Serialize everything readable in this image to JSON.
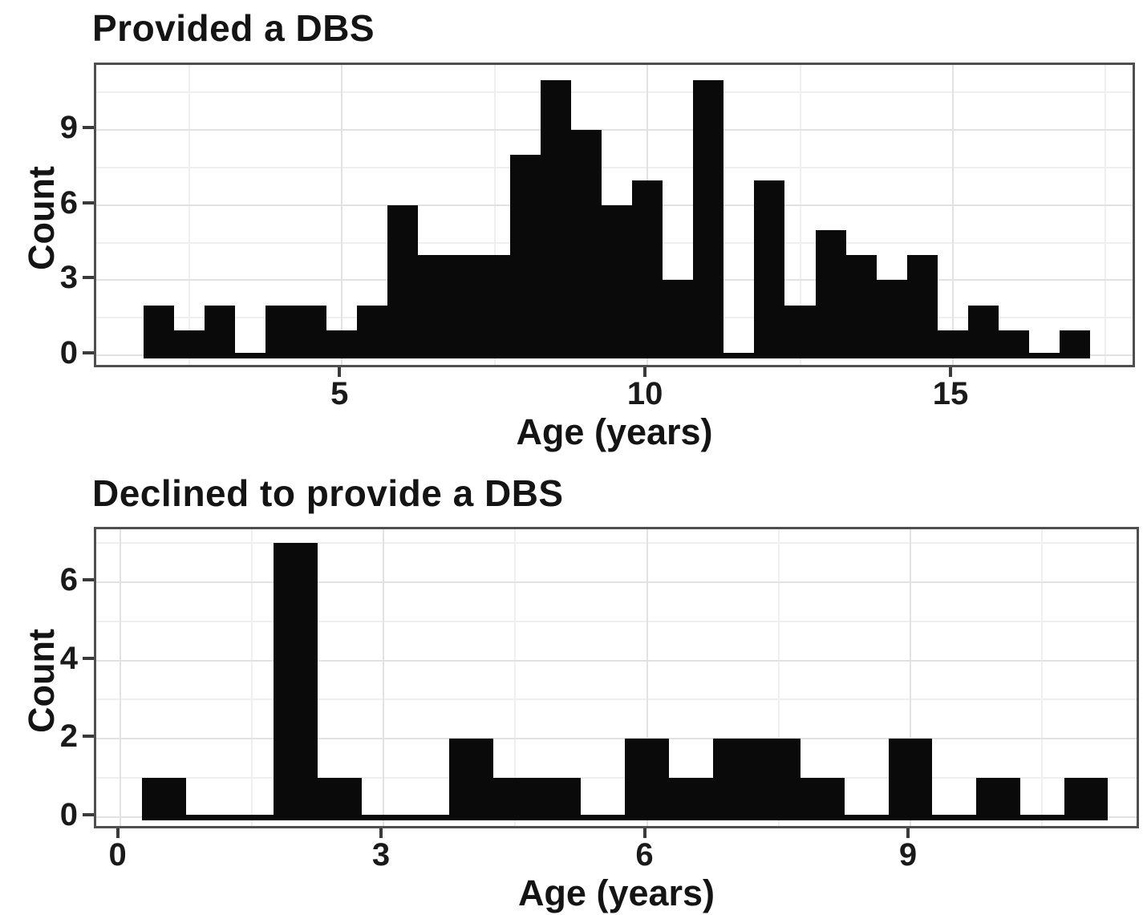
{
  "figure": {
    "background": "#ffffff",
    "bar_color": "#0a0a0a",
    "panel_border_color": "#4f4f4f",
    "grid_major_color": "#e2e2e2",
    "grid_minor_color": "#efefef"
  },
  "chart_data": [
    {
      "type": "bar",
      "title": "Provided a DBS",
      "xlabel": "Age (years)",
      "ylabel": "Count",
      "bin_start": 1.75,
      "bin_width": 0.5,
      "bin_centers": [
        2.0,
        2.5,
        3.0,
        3.5,
        4.0,
        4.5,
        5.0,
        5.5,
        6.0,
        6.5,
        7.0,
        7.5,
        8.0,
        8.5,
        9.0,
        9.5,
        10.0,
        10.5,
        11.0,
        11.5,
        12.0,
        12.5,
        13.0,
        13.5,
        14.0,
        14.5,
        15.0,
        15.5,
        16.0,
        16.5,
        17.0
      ],
      "values": [
        2,
        1,
        2,
        0,
        2,
        2,
        1,
        2,
        6,
        4,
        4,
        4,
        8,
        11,
        9,
        6,
        7,
        3,
        11,
        0,
        7,
        2,
        5,
        4,
        3,
        4,
        1,
        2,
        1,
        0,
        1
      ],
      "x_ticks": [
        5,
        10,
        15
      ],
      "x_minor": [
        2.5,
        7.5,
        12.5,
        17.5
      ],
      "y_ticks": [
        0,
        3,
        6,
        9
      ],
      "y_minor": [
        1.5,
        4.5,
        7.5,
        10.5
      ],
      "xlim": [
        0.98,
        18.02
      ],
      "ylim": [
        -0.58,
        11.6
      ],
      "grid": true,
      "legend": "none"
    },
    {
      "type": "bar",
      "title": "Declined to provide a DBS",
      "xlabel": "Age (years)",
      "ylabel": "Count",
      "bin_start": 0.25,
      "bin_width": 0.5,
      "bin_centers": [
        0.5,
        1.0,
        1.5,
        2.0,
        2.5,
        3.0,
        3.5,
        4.0,
        4.5,
        5.0,
        5.5,
        6.0,
        6.5,
        7.0,
        7.5,
        8.0,
        8.5,
        9.0,
        9.5,
        10.0,
        10.5,
        11.0
      ],
      "values": [
        1,
        0,
        0,
        7,
        1,
        0,
        0,
        2,
        1,
        1,
        0,
        2,
        1,
        2,
        2,
        1,
        0,
        2,
        0,
        1,
        0,
        1
      ],
      "x_ticks": [
        0,
        3,
        6,
        9
      ],
      "x_minor": [
        1.5,
        4.5,
        7.5,
        10.5
      ],
      "y_ticks": [
        0,
        2,
        4,
        6
      ],
      "y_minor": [
        1,
        3,
        5,
        7
      ],
      "xlim": [
        -0.27,
        11.63
      ],
      "ylim": [
        -0.35,
        7.35
      ],
      "grid": true,
      "legend": "none"
    }
  ]
}
